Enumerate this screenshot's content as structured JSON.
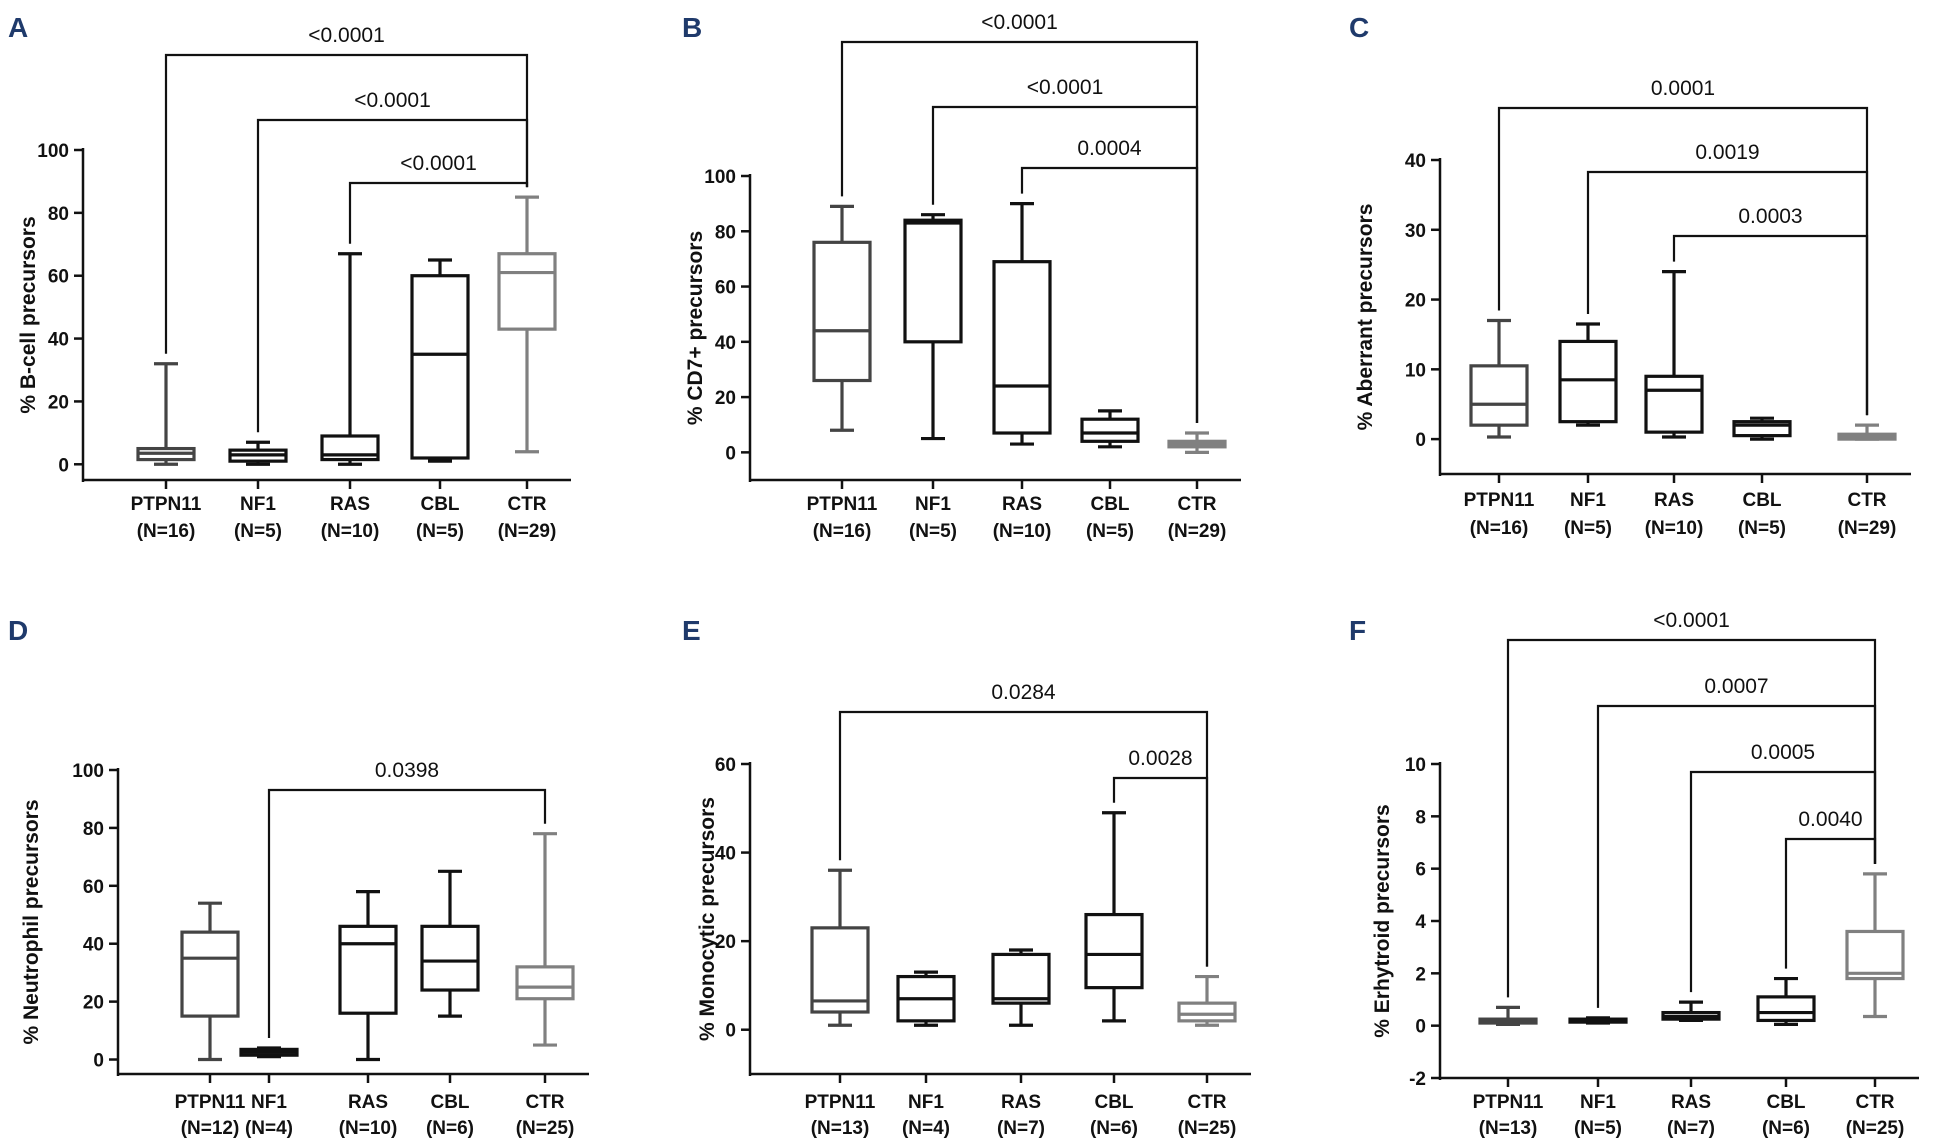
{
  "chart_data": [
    {
      "panel": "A",
      "type": "box",
      "ylabel": "% B-cell precursors",
      "ylim": [
        -5,
        100
      ],
      "yticks": [
        0,
        20,
        40,
        60,
        80,
        100
      ],
      "categories": [
        "PTPN11",
        "NF1",
        "RAS",
        "CBL",
        "CTR"
      ],
      "n_labels": [
        "(N=16)",
        "(N=5)",
        "(N=10)",
        "(N=5)",
        "(N=29)"
      ],
      "series_colors": [
        "#444444",
        "#111111",
        "#111111",
        "#111111",
        "#808080"
      ],
      "boxes": [
        {
          "min": 0,
          "q1": 1.5,
          "median": 3.5,
          "q3": 5,
          "max": 32
        },
        {
          "min": 0,
          "q1": 1,
          "median": 3,
          "q3": 4.5,
          "max": 7
        },
        {
          "min": 0,
          "q1": 1.5,
          "median": 3,
          "q3": 9,
          "max": 67
        },
        {
          "min": 1,
          "q1": 2,
          "median": 35,
          "q3": 60,
          "max": 65
        },
        {
          "min": 4,
          "q1": 43,
          "median": 61,
          "q3": 67,
          "max": 85
        }
      ],
      "comparisons": [
        {
          "from": "PTPN11",
          "to": "CTR",
          "p": "<0.0001"
        },
        {
          "from": "NF1",
          "to": "CTR",
          "p": "<0.0001"
        },
        {
          "from": "RAS",
          "to": "CTR",
          "p": "<0.0001"
        }
      ]
    },
    {
      "panel": "B",
      "type": "box",
      "ylabel": "% CD7+ precursors",
      "ylim": [
        -10,
        100
      ],
      "yticks": [
        0,
        20,
        40,
        60,
        80,
        100
      ],
      "categories": [
        "PTPN11",
        "NF1",
        "RAS",
        "CBL",
        "CTR"
      ],
      "n_labels": [
        "(N=16)",
        "(N=5)",
        "(N=10)",
        "(N=5)",
        "(N=29)"
      ],
      "series_colors": [
        "#444444",
        "#111111",
        "#111111",
        "#111111",
        "#808080"
      ],
      "boxes": [
        {
          "min": 8,
          "q1": 26,
          "median": 44,
          "q3": 76,
          "max": 89
        },
        {
          "min": 5,
          "q1": 40,
          "median": 83,
          "q3": 84,
          "max": 86
        },
        {
          "min": 3,
          "q1": 7,
          "median": 24,
          "q3": 69,
          "max": 90
        },
        {
          "min": 2,
          "q1": 4,
          "median": 7,
          "q3": 12,
          "max": 15
        },
        {
          "min": 0,
          "q1": 2,
          "median": 3,
          "q3": 4,
          "max": 7
        }
      ],
      "comparisons": [
        {
          "from": "PTPN11",
          "to": "CTR",
          "p": "<0.0001"
        },
        {
          "from": "NF1",
          "to": "CTR",
          "p": "<0.0001"
        },
        {
          "from": "RAS",
          "to": "CTR",
          "p": "0.0004"
        }
      ]
    },
    {
      "panel": "C",
      "type": "box",
      "ylabel": "% Aberrant precursors",
      "ylim": [
        -5,
        40
      ],
      "yticks": [
        0,
        10,
        20,
        30,
        40
      ],
      "categories": [
        "PTPN11",
        "NF1",
        "RAS",
        "CBL",
        "CTR"
      ],
      "n_labels": [
        "(N=16)",
        "(N=5)",
        "(N=10)",
        "(N=5)",
        "(N=29)"
      ],
      "series_colors": [
        "#444444",
        "#111111",
        "#111111",
        "#111111",
        "#808080"
      ],
      "boxes": [
        {
          "min": 0.3,
          "q1": 2,
          "median": 5,
          "q3": 10.5,
          "max": 17
        },
        {
          "min": 2,
          "q1": 2.5,
          "median": 8.5,
          "q3": 14,
          "max": 16.5
        },
        {
          "min": 0.3,
          "q1": 1,
          "median": 7,
          "q3": 9,
          "max": 24
        },
        {
          "min": 0,
          "q1": 0.5,
          "median": 2,
          "q3": 2.5,
          "max": 3
        },
        {
          "min": 0,
          "q1": 0,
          "median": 0.3,
          "q3": 0.7,
          "max": 2
        }
      ],
      "comparisons": [
        {
          "from": "PTPN11",
          "to": "CTR",
          "p": "0.0001"
        },
        {
          "from": "NF1",
          "to": "CTR",
          "p": "0.0019"
        },
        {
          "from": "RAS",
          "to": "CTR",
          "p": "0.0003"
        }
      ]
    },
    {
      "panel": "D",
      "type": "box",
      "ylabel": "% Neutrophil precursors",
      "ylim": [
        -5,
        100
      ],
      "yticks": [
        0,
        20,
        40,
        60,
        80,
        100
      ],
      "categories": [
        "PTPN11",
        "NF1",
        "RAS",
        "CBL",
        "CTR"
      ],
      "n_labels": [
        "(N=12)",
        "(N=4)",
        "(N=10)",
        "(N=6)",
        "(N=25)"
      ],
      "series_colors": [
        "#444444",
        "#111111",
        "#111111",
        "#111111",
        "#808080"
      ],
      "boxes": [
        {
          "min": 0,
          "q1": 15,
          "median": 35,
          "q3": 44,
          "max": 54
        },
        {
          "min": 1,
          "q1": 1.5,
          "median": 2.5,
          "q3": 3.5,
          "max": 4
        },
        {
          "min": 0,
          "q1": 16,
          "median": 40,
          "q3": 46,
          "max": 58
        },
        {
          "min": 15,
          "q1": 24,
          "median": 34,
          "q3": 46,
          "max": 65
        },
        {
          "min": 5,
          "q1": 21,
          "median": 25,
          "q3": 32,
          "max": 78
        }
      ],
      "comparisons": [
        {
          "from": "NF1",
          "to": "CTR",
          "p": "0.0398"
        }
      ]
    },
    {
      "panel": "E",
      "type": "box",
      "ylabel": "% Monocytic precursors",
      "ylim": [
        -10,
        60
      ],
      "yticks": [
        0,
        20,
        40,
        60
      ],
      "categories": [
        "PTPN11",
        "NF1",
        "RAS",
        "CBL",
        "CTR"
      ],
      "n_labels": [
        "(N=13)",
        "(N=4)",
        "(N=7)",
        "(N=6)",
        "(N=25)"
      ],
      "series_colors": [
        "#444444",
        "#111111",
        "#111111",
        "#111111",
        "#808080"
      ],
      "boxes": [
        {
          "min": 1,
          "q1": 4,
          "median": 6.5,
          "q3": 23,
          "max": 36
        },
        {
          "min": 1,
          "q1": 2,
          "median": 7,
          "q3": 12,
          "max": 13
        },
        {
          "min": 1,
          "q1": 6,
          "median": 7,
          "q3": 17,
          "max": 18
        },
        {
          "min": 2,
          "q1": 9.5,
          "median": 17,
          "q3": 26,
          "max": 49
        },
        {
          "min": 1,
          "q1": 2,
          "median": 3.5,
          "q3": 6,
          "max": 12
        }
      ],
      "comparisons": [
        {
          "from": "PTPN11",
          "to": "CTR",
          "p": "0.0284"
        },
        {
          "from": "CBL",
          "to": "CTR",
          "p": "0.0028"
        }
      ]
    },
    {
      "panel": "F",
      "type": "box",
      "ylabel": "% Erhytroid precursors",
      "ylim": [
        -2,
        10
      ],
      "yticks": [
        -2,
        0,
        2,
        4,
        6,
        8,
        10
      ],
      "categories": [
        "PTPN11",
        "NF1",
        "RAS",
        "CBL",
        "CTR"
      ],
      "n_labels": [
        "(N=13)",
        "(N=5)",
        "(N=7)",
        "(N=6)",
        "(N=25)"
      ],
      "series_colors": [
        "#444444",
        "#111111",
        "#111111",
        "#111111",
        "#808080"
      ],
      "boxes": [
        {
          "min": 0.05,
          "q1": 0.1,
          "median": 0.2,
          "q3": 0.25,
          "max": 0.7
        },
        {
          "min": 0.1,
          "q1": 0.15,
          "median": 0.2,
          "q3": 0.25,
          "max": 0.3
        },
        {
          "min": 0.2,
          "q1": 0.25,
          "median": 0.35,
          "q3": 0.5,
          "max": 0.9
        },
        {
          "min": 0.05,
          "q1": 0.2,
          "median": 0.5,
          "q3": 1.1,
          "max": 1.8
        },
        {
          "min": 0.35,
          "q1": 1.8,
          "median": 2,
          "q3": 3.6,
          "max": 5.8
        }
      ],
      "comparisons": [
        {
          "from": "PTPN11",
          "to": "CTR",
          "p": "<0.0001"
        },
        {
          "from": "NF1",
          "to": "CTR",
          "p": "0.0007"
        },
        {
          "from": "RAS",
          "to": "CTR",
          "p": "0.0005"
        },
        {
          "from": "CBL",
          "to": "CTR",
          "p": "0.0040"
        }
      ]
    }
  ]
}
